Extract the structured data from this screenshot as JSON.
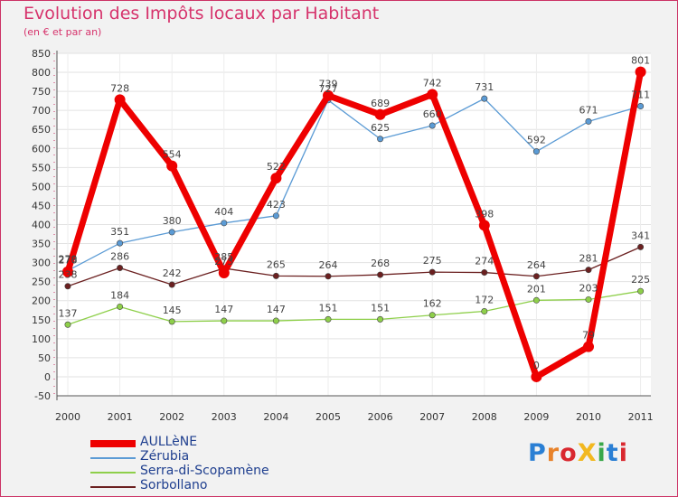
{
  "title": "Evolution des Impôts locaux par Habitant",
  "subtitle": "(en € et par an)",
  "logo": {
    "text": "ProXiti",
    "letters": [
      "P",
      "r",
      "o",
      "X",
      "i",
      "t",
      "i"
    ],
    "colors": [
      "#2a7fd4",
      "#e8822a",
      "#d9282f",
      "#f2b81f",
      "#3aa84a",
      "#2a7fd4",
      "#d9282f"
    ]
  },
  "chart_data": {
    "type": "line",
    "categories": [
      "2000",
      "2001",
      "2002",
      "2003",
      "2004",
      "2005",
      "2006",
      "2007",
      "2008",
      "2009",
      "2010",
      "2011"
    ],
    "ylim": [
      -50,
      850
    ],
    "yticks": [
      -50,
      0,
      50,
      100,
      150,
      200,
      250,
      300,
      350,
      400,
      450,
      500,
      550,
      600,
      650,
      700,
      750,
      800,
      850
    ],
    "grid": true,
    "legend_position": "bottom-left",
    "series": [
      {
        "name": "Zérubia",
        "color": "#5b9bd5",
        "values": [
          279,
          351,
          380,
          404,
          423,
          727,
          625,
          660,
          731,
          592,
          671,
          711
        ],
        "labels": [
          "279",
          "351",
          "380",
          "404",
          "423",
          "727",
          "625",
          "660",
          "731",
          "592",
          "671",
          "711"
        ]
      },
      {
        "name": "Serra-di-Scopamène",
        "color": "#8ecf4a",
        "values": [
          137,
          184,
          145,
          147,
          147,
          151,
          151,
          162,
          172,
          201,
          203,
          225
        ],
        "labels": [
          "137",
          "184",
          "145",
          "147",
          "147",
          "151",
          "151",
          "162",
          "172",
          "201",
          "203",
          "225"
        ]
      },
      {
        "name": "Sorbollano",
        "color": "#6b2020",
        "values": [
          238,
          286,
          242,
          285,
          265,
          264,
          268,
          275,
          274,
          264,
          281,
          341
        ],
        "labels": [
          "238",
          "286",
          "242",
          "285",
          "265",
          "264",
          "268",
          "275",
          "274",
          "264",
          "281",
          "341"
        ]
      },
      {
        "name": "AULLèNE",
        "color": "#ee0000",
        "values": [
          276,
          728,
          554,
          273,
          522,
          739,
          689,
          742,
          398,
          0,
          79,
          801
        ],
        "labels": [
          "276",
          "728",
          "554",
          "273",
          "522",
          "739",
          "689",
          "742",
          "398",
          "0",
          "79",
          "801"
        ]
      }
    ]
  }
}
